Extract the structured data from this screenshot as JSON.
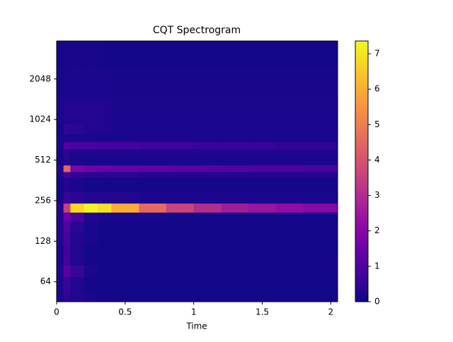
{
  "chart_data": {
    "type": "heatmap",
    "title": "CQT Spectrogram",
    "x_label": "Time",
    "x_edges": [
      0,
      0.05,
      0.1,
      0.2,
      0.3,
      0.4,
      0.6,
      0.8,
      1.0,
      1.2,
      1.4,
      1.6,
      1.8,
      2.05
    ],
    "y_edges": [
      45.5,
      55,
      70,
      85,
      100,
      120,
      150,
      180,
      210,
      245,
      300,
      380,
      420,
      470,
      580,
      620,
      700,
      800,
      950,
      1500,
      2500,
      3920
    ],
    "z": [
      [
        0.2,
        0.5,
        0.3,
        0.2,
        0.1,
        0.1,
        0.1,
        0.1,
        0.1,
        0.1,
        0.1,
        0.1,
        0.1
      ],
      [
        0.2,
        0.6,
        0.3,
        0.1,
        0.1,
        0.1,
        0.1,
        0.1,
        0.1,
        0.1,
        0.1,
        0.1,
        0.1
      ],
      [
        0.3,
        1.2,
        0.6,
        0.2,
        0.1,
        0.1,
        0.1,
        0.1,
        0.1,
        0.1,
        0.1,
        0.1,
        0.1
      ],
      [
        0.2,
        0.8,
        0.3,
        0.1,
        0.1,
        0.1,
        0.1,
        0.1,
        0.1,
        0.1,
        0.1,
        0.1,
        0.1
      ],
      [
        0.2,
        0.7,
        0.3,
        0.1,
        0.1,
        0.1,
        0.1,
        0.1,
        0.1,
        0.1,
        0.1,
        0.1,
        0.1
      ],
      [
        0.3,
        0.8,
        0.3,
        0.2,
        0.1,
        0.1,
        0.1,
        0.1,
        0.1,
        0.1,
        0.1,
        0.1,
        0.1
      ],
      [
        0.3,
        1.0,
        0.4,
        0.2,
        0.1,
        0.1,
        0.1,
        0.1,
        0.1,
        0.1,
        0.1,
        0.1,
        0.1
      ],
      [
        0.3,
        1.5,
        0.8,
        0.3,
        0.2,
        0.2,
        0.2,
        0.1,
        0.1,
        0.1,
        0.1,
        0.1,
        0.1
      ],
      [
        0.3,
        3.5,
        6.8,
        7.3,
        7.0,
        6.0,
        4.6,
        3.6,
        3.0,
        2.6,
        2.4,
        2.2,
        2.0
      ],
      [
        0.1,
        0.6,
        0.4,
        0.3,
        0.3,
        0.3,
        0.2,
        0.2,
        0.2,
        0.2,
        0.2,
        0.2,
        0.2
      ],
      [
        0.1,
        0.3,
        0.2,
        0.1,
        0.1,
        0.1,
        0.1,
        0.1,
        0.1,
        0.1,
        0.1,
        0.1,
        0.1
      ],
      [
        0.2,
        0.8,
        0.5,
        0.4,
        0.4,
        0.4,
        0.3,
        0.3,
        0.3,
        0.3,
        0.3,
        0.3,
        0.3
      ],
      [
        0.3,
        4.5,
        1.8,
        1.6,
        1.5,
        1.4,
        1.3,
        1.2,
        1.2,
        1.1,
        1.0,
        1.0,
        0.9
      ],
      [
        0.1,
        0.4,
        0.2,
        0.2,
        0.2,
        0.2,
        0.2,
        0.2,
        0.2,
        0.2,
        0.2,
        0.2,
        0.2
      ],
      [
        0.1,
        0.5,
        0.3,
        0.3,
        0.3,
        0.3,
        0.3,
        0.3,
        0.3,
        0.3,
        0.3,
        0.3,
        0.3
      ],
      [
        0.2,
        1.0,
        0.9,
        0.9,
        0.8,
        0.8,
        0.7,
        0.7,
        0.6,
        0.6,
        0.6,
        0.5,
        0.5
      ],
      [
        0.2,
        0.2,
        0.2,
        0.2,
        0.2,
        0.2,
        0.2,
        0.2,
        0.2,
        0.2,
        0.2,
        0.2,
        0.2
      ],
      [
        0.1,
        0.5,
        0.4,
        0.3,
        0.3,
        0.2,
        0.2,
        0.2,
        0.2,
        0.2,
        0.2,
        0.2,
        0.2
      ],
      [
        0.2,
        0.3,
        0.3,
        0.3,
        0.3,
        0.2,
        0.2,
        0.2,
        0.2,
        0.2,
        0.2,
        0.2,
        0.2
      ],
      [
        0.15,
        0.2,
        0.2,
        0.2,
        0.2,
        0.15,
        0.15,
        0.15,
        0.15,
        0.15,
        0.15,
        0.15,
        0.15
      ],
      [
        0.1,
        0.15,
        0.15,
        0.15,
        0.1,
        0.1,
        0.1,
        0.1,
        0.1,
        0.1,
        0.1,
        0.1,
        0.1
      ]
    ],
    "xlim": [
      0,
      2.05
    ],
    "xticks": [
      0,
      0.5,
      1,
      1.5,
      2
    ],
    "ylim": [
      45.5,
      3920
    ],
    "yticks": [
      64,
      128,
      256,
      512,
      1024,
      2048
    ],
    "ylog": true,
    "clim": [
      0,
      7.36
    ],
    "cticks": [
      0,
      1,
      2,
      3,
      4,
      5,
      6,
      7
    ],
    "colormap": "plasma"
  }
}
